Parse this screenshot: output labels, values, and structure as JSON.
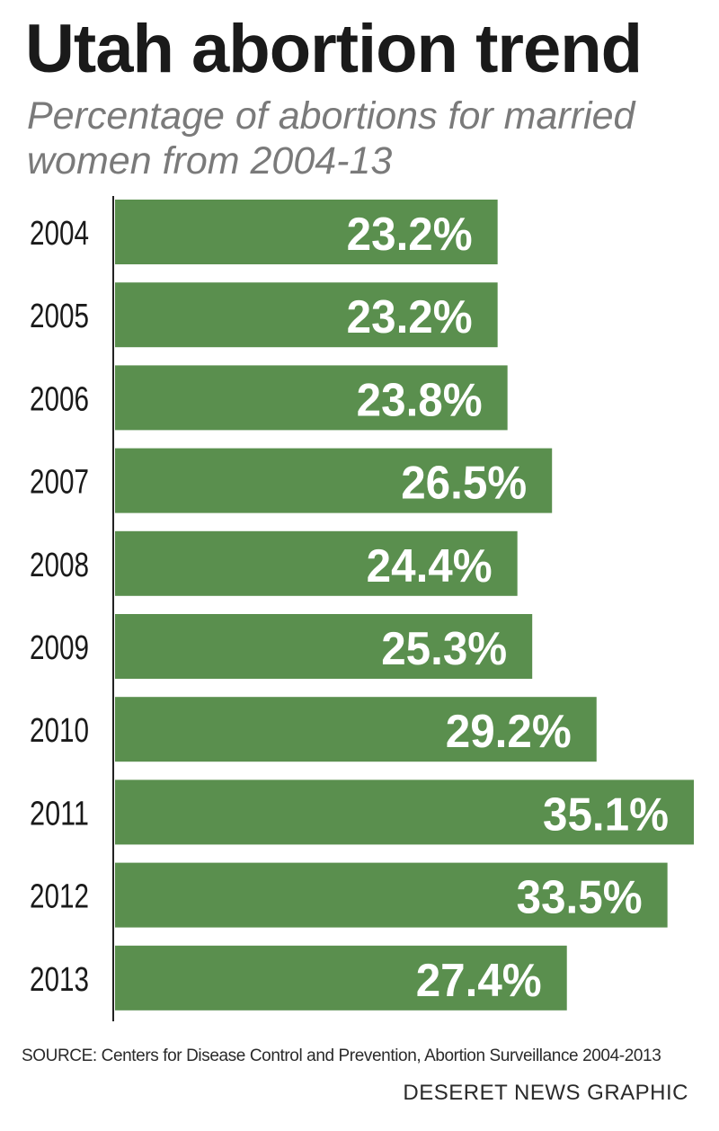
{
  "chart_data": {
    "type": "bar",
    "orientation": "horizontal",
    "title": "Utah abortion trend",
    "subtitle": "Percentage of abortions for married women from 2004-13",
    "categories": [
      "2004",
      "2005",
      "2006",
      "2007",
      "2008",
      "2009",
      "2010",
      "2011",
      "2012",
      "2013"
    ],
    "values": [
      23.2,
      23.2,
      23.8,
      26.5,
      24.4,
      25.3,
      29.2,
      35.1,
      33.5,
      27.4
    ],
    "value_labels": [
      "23.2%",
      "23.2%",
      "23.8%",
      "26.5%",
      "24.4%",
      "25.3%",
      "29.2%",
      "35.1%",
      "33.5%",
      "27.4%"
    ],
    "xlim": [
      0,
      35.1
    ],
    "grid": false,
    "bar_color": "#5a8f4e",
    "label_color": "#ffffff"
  },
  "source": "SOURCE: Centers for Disease Control and Prevention, Abortion Surveillance 2004-2013",
  "credit": "DESERET NEWS GRAPHIC"
}
